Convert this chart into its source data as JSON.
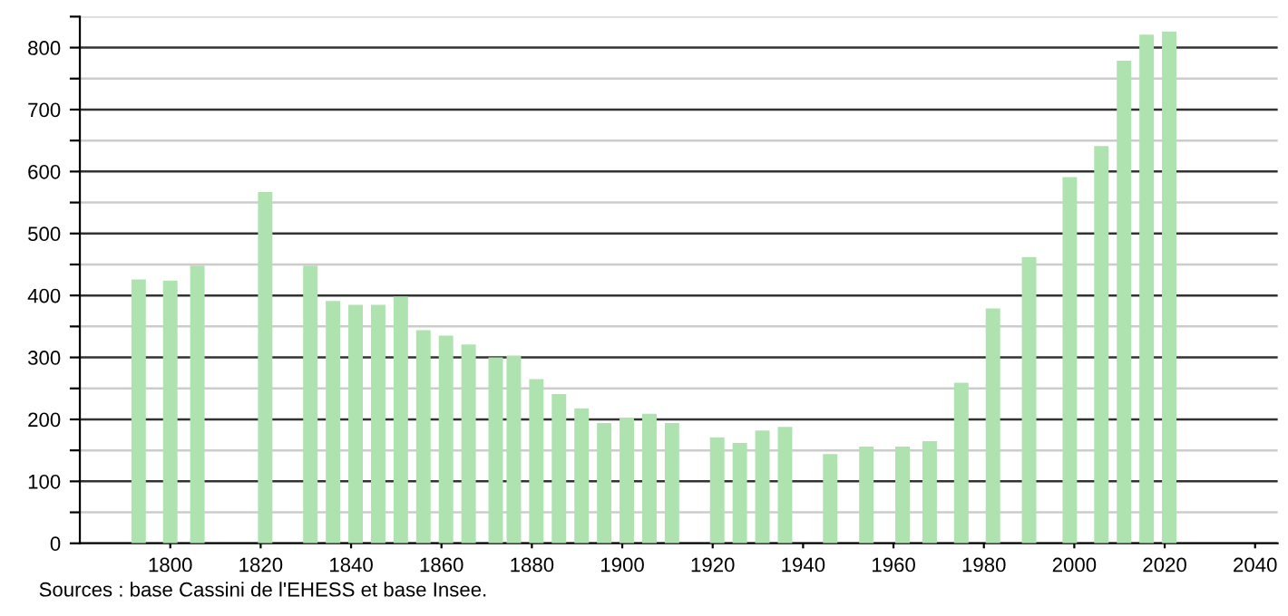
{
  "chart_data": {
    "type": "bar",
    "x": [
      1793,
      1800,
      1806,
      1821,
      1831,
      1836,
      1841,
      1846,
      1851,
      1856,
      1861,
      1866,
      1872,
      1876,
      1881,
      1886,
      1891,
      1896,
      1901,
      1906,
      1911,
      1921,
      1926,
      1931,
      1936,
      1946,
      1954,
      1962,
      1968,
      1975,
      1982,
      1990,
      1999,
      2006,
      2011,
      2016,
      2021
    ],
    "values": [
      426,
      424,
      448,
      567,
      448,
      391,
      385,
      385,
      398,
      344,
      335,
      321,
      300,
      303,
      265,
      241,
      218,
      194,
      203,
      209,
      194,
      171,
      162,
      182,
      188,
      144,
      156,
      156,
      165,
      259,
      379,
      462,
      591,
      641,
      779,
      821,
      826
    ],
    "color": "#aee3b0",
    "xlim": [
      1780,
      2045
    ],
    "xticks": [
      1800,
      1820,
      1840,
      1860,
      1880,
      1900,
      1920,
      1940,
      1960,
      1980,
      2000,
      2020,
      2040
    ],
    "ylim": [
      0,
      850
    ],
    "yticks": [
      0,
      {
        "value": 50,
        "label": null
      },
      100,
      {
        "value": 150,
        "label": null
      },
      200,
      {
        "value": 250,
        "label": null
      },
      300,
      {
        "value": 350,
        "label": null
      },
      400,
      {
        "value": 450,
        "label": null
      },
      500,
      {
        "value": 550,
        "label": null
      },
      600,
      {
        "value": 650,
        "label": null
      },
      700,
      {
        "value": 750,
        "label": null
      },
      800,
      {
        "value": 850,
        "label": null
      }
    ],
    "grid": "y",
    "annotations": [
      "Sources : base Cassini de l'EHESS et base Insee."
    ]
  }
}
